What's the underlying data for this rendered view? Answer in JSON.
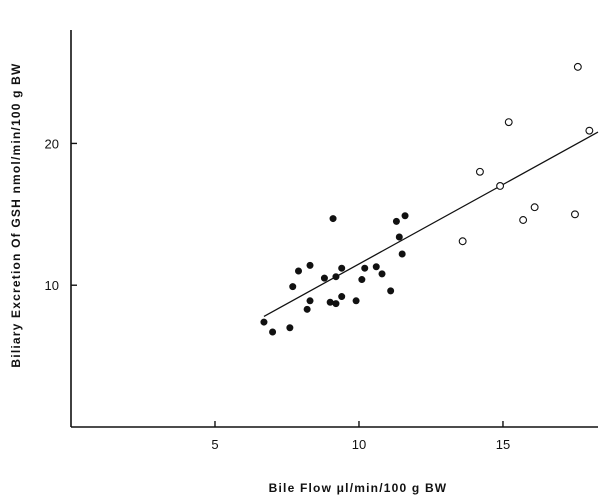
{
  "chart_data": {
    "type": "scatter",
    "title": "",
    "xlabel": "Bile Flow μl/min/100 g BW",
    "ylabel": "Biliary Excretion Of GSH nmol/min/100 g BW",
    "xlim": [
      0,
      18.3
    ],
    "ylim": [
      0,
      28
    ],
    "x_ticks": [
      5,
      10,
      15
    ],
    "y_ticks": [
      10,
      20
    ],
    "x_tick_labels": [
      "5",
      "10",
      "15"
    ],
    "y_tick_labels": [
      "10",
      "20"
    ],
    "grid": false,
    "legend": "none",
    "series": [
      {
        "marker": "filled-circle",
        "points": [
          [
            6.7,
            7.4
          ],
          [
            7.0,
            6.7
          ],
          [
            7.6,
            7.0
          ],
          [
            7.7,
            9.9
          ],
          [
            7.9,
            11.0
          ],
          [
            8.2,
            8.3
          ],
          [
            8.3,
            11.4
          ],
          [
            8.3,
            8.9
          ],
          [
            8.8,
            10.5
          ],
          [
            9.0,
            8.8
          ],
          [
            9.1,
            14.7
          ],
          [
            9.2,
            10.6
          ],
          [
            9.2,
            8.7
          ],
          [
            9.4,
            9.2
          ],
          [
            9.4,
            11.2
          ],
          [
            9.9,
            8.9
          ],
          [
            10.1,
            10.4
          ],
          [
            10.2,
            11.2
          ],
          [
            10.6,
            11.3
          ],
          [
            10.8,
            10.8
          ],
          [
            11.1,
            9.6
          ],
          [
            11.3,
            14.5
          ],
          [
            11.4,
            13.4
          ],
          [
            11.5,
            12.2
          ],
          [
            11.6,
            14.9
          ]
        ]
      },
      {
        "marker": "open-circle",
        "points": [
          [
            13.6,
            13.1
          ],
          [
            14.2,
            18.0
          ],
          [
            14.9,
            17.0
          ],
          [
            15.2,
            21.5
          ],
          [
            15.7,
            14.6
          ],
          [
            16.1,
            15.5
          ],
          [
            17.5,
            15.0
          ],
          [
            17.6,
            25.4
          ],
          [
            18.0,
            20.9
          ]
        ]
      }
    ],
    "regression_line": {
      "x": [
        6.7,
        18.3
      ],
      "y": [
        7.8,
        20.8
      ]
    }
  },
  "colors": {
    "ink": "#111111",
    "background": "#ffffff"
  }
}
